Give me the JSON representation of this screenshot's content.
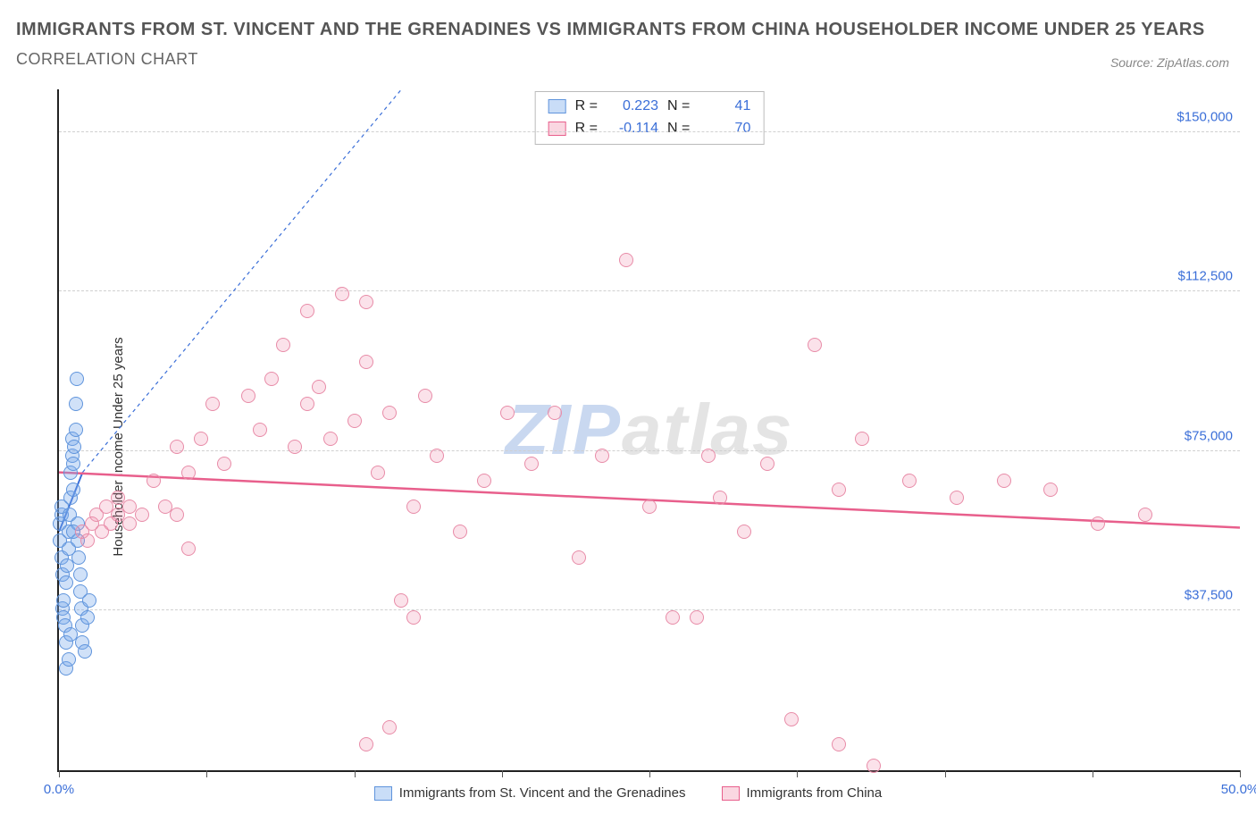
{
  "title": "IMMIGRANTS FROM ST. VINCENT AND THE GRENADINES VS IMMIGRANTS FROM CHINA HOUSEHOLDER INCOME UNDER 25 YEARS",
  "subtitle": "CORRELATION CHART",
  "source_label": "Source: ZipAtlas.com",
  "watermark": {
    "part1": "ZIP",
    "part2": "atlas"
  },
  "chart": {
    "type": "scatter",
    "y_axis_label": "Householder Income Under 25 years",
    "xlim": [
      0,
      50
    ],
    "ylim": [
      0,
      160000
    ],
    "x_ticks": [
      0,
      6.25,
      12.5,
      18.75,
      25,
      31.25,
      37.5,
      43.75,
      50
    ],
    "x_tick_labels": {
      "0": "0.0%",
      "50": "50.0%"
    },
    "y_gridlines": [
      37500,
      75000,
      112500,
      150000
    ],
    "y_tick_labels": [
      "$37,500",
      "$75,000",
      "$112,500",
      "$150,000"
    ],
    "background_color": "#ffffff",
    "grid_color": "#d0d0d0",
    "axis_color": "#222222",
    "tick_label_color": "#3b6fd8",
    "marker_radius": 8,
    "series": [
      {
        "key": "svg",
        "label": "Immigrants from St. Vincent and the Grenadines",
        "fill": "rgba(120,170,235,0.35)",
        "stroke": "#5f94dc",
        "R": "0.223",
        "N": "41",
        "trend": {
          "x1": 0,
          "y1": 56000,
          "x2": 1.0,
          "y2": 70000,
          "dash_extend_to_x": 14.5,
          "dash_extend_to_y": 160000,
          "color": "#3b6fd8",
          "width": 2
        },
        "points": [
          [
            0.05,
            54000
          ],
          [
            0.05,
            58000
          ],
          [
            0.1,
            50000
          ],
          [
            0.1,
            60000
          ],
          [
            0.12,
            62000
          ],
          [
            0.15,
            46000
          ],
          [
            0.15,
            38000
          ],
          [
            0.2,
            36000
          ],
          [
            0.2,
            40000
          ],
          [
            0.25,
            34000
          ],
          [
            0.3,
            30000
          ],
          [
            0.3,
            44000
          ],
          [
            0.35,
            48000
          ],
          [
            0.4,
            52000
          ],
          [
            0.4,
            56000
          ],
          [
            0.45,
            60000
          ],
          [
            0.5,
            64000
          ],
          [
            0.5,
            70000
          ],
          [
            0.55,
            74000
          ],
          [
            0.55,
            78000
          ],
          [
            0.6,
            72000
          ],
          [
            0.6,
            66000
          ],
          [
            0.65,
            76000
          ],
          [
            0.7,
            80000
          ],
          [
            0.7,
            86000
          ],
          [
            0.75,
            92000
          ],
          [
            0.8,
            58000
          ],
          [
            0.8,
            54000
          ],
          [
            0.85,
            50000
          ],
          [
            0.9,
            46000
          ],
          [
            0.9,
            42000
          ],
          [
            0.95,
            38000
          ],
          [
            1.0,
            34000
          ],
          [
            1.0,
            30000
          ],
          [
            1.1,
            28000
          ],
          [
            1.2,
            36000
          ],
          [
            1.3,
            40000
          ],
          [
            0.3,
            24000
          ],
          [
            0.4,
            26000
          ],
          [
            0.5,
            32000
          ],
          [
            0.6,
            56000
          ]
        ]
      },
      {
        "key": "china",
        "label": "Immigrants from China",
        "fill": "rgba(240,140,170,0.25)",
        "stroke": "#e88ca8",
        "R": "-0.114",
        "N": "70",
        "trend": {
          "x1": 0,
          "y1": 70000,
          "x2": 50,
          "y2": 57000,
          "color": "#e85f8c",
          "width": 2.5
        },
        "points": [
          [
            1.0,
            56000
          ],
          [
            1.2,
            54000
          ],
          [
            1.4,
            58000
          ],
          [
            1.6,
            60000
          ],
          [
            1.8,
            56000
          ],
          [
            2.0,
            62000
          ],
          [
            2.2,
            58000
          ],
          [
            2.5,
            60000
          ],
          [
            2.5,
            64000
          ],
          [
            3.0,
            58000
          ],
          [
            3.0,
            62000
          ],
          [
            3.5,
            60000
          ],
          [
            4.0,
            68000
          ],
          [
            4.5,
            62000
          ],
          [
            5.0,
            60000
          ],
          [
            5.0,
            76000
          ],
          [
            5.5,
            70000
          ],
          [
            6.0,
            78000
          ],
          [
            6.5,
            86000
          ],
          [
            7.0,
            72000
          ],
          [
            8.0,
            88000
          ],
          [
            8.5,
            80000
          ],
          [
            9.0,
            92000
          ],
          [
            9.5,
            100000
          ],
          [
            10.0,
            76000
          ],
          [
            10.5,
            108000
          ],
          [
            10.5,
            86000
          ],
          [
            11.0,
            90000
          ],
          [
            11.5,
            78000
          ],
          [
            12.0,
            112000
          ],
          [
            12.5,
            82000
          ],
          [
            13.0,
            96000
          ],
          [
            13.0,
            110000
          ],
          [
            13.5,
            70000
          ],
          [
            14.0,
            84000
          ],
          [
            14.5,
            40000
          ],
          [
            15.0,
            62000
          ],
          [
            15.5,
            88000
          ],
          [
            16.0,
            74000
          ],
          [
            17.0,
            56000
          ],
          [
            18.0,
            68000
          ],
          [
            19.0,
            84000
          ],
          [
            20.0,
            72000
          ],
          [
            21.0,
            84000
          ],
          [
            22.0,
            50000
          ],
          [
            23.0,
            74000
          ],
          [
            24.0,
            120000
          ],
          [
            25.0,
            62000
          ],
          [
            26.0,
            36000
          ],
          [
            27.0,
            36000
          ],
          [
            27.5,
            74000
          ],
          [
            28.0,
            64000
          ],
          [
            29.0,
            56000
          ],
          [
            30.0,
            72000
          ],
          [
            32.0,
            100000
          ],
          [
            33.0,
            66000
          ],
          [
            34.0,
            78000
          ],
          [
            36.0,
            68000
          ],
          [
            38.0,
            64000
          ],
          [
            40.0,
            68000
          ],
          [
            42.0,
            66000
          ],
          [
            44.0,
            58000
          ],
          [
            46.0,
            60000
          ],
          [
            14.0,
            10000
          ],
          [
            13.0,
            6000
          ],
          [
            33.0,
            6000
          ],
          [
            34.5,
            1000
          ],
          [
            31.0,
            12000
          ],
          [
            15.0,
            36000
          ],
          [
            5.5,
            52000
          ]
        ]
      }
    ]
  },
  "legend_top": {
    "r_label": "R =",
    "n_label": "N ="
  }
}
